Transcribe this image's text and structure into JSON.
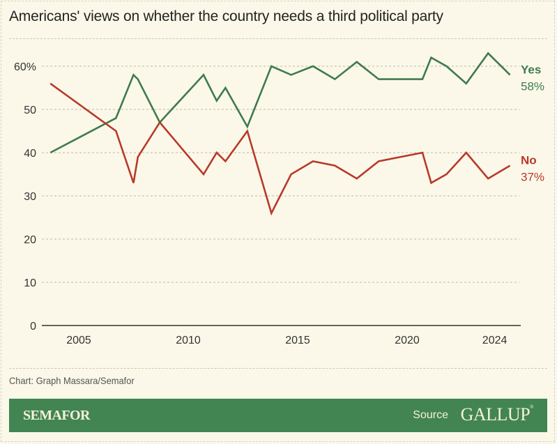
{
  "title": "Americans' views on whether the country needs a third political party",
  "credit": "Chart: Graph Massara/Semafor",
  "footer": {
    "brand": "SEMAFOR",
    "source_label": "Source",
    "source_name": "GALLUP"
  },
  "colors": {
    "background": "#fbf8e9",
    "yes": "#3f7a4e",
    "no": "#b8392a",
    "footer": "#428553"
  },
  "chart_data": {
    "type": "line",
    "title": "Americans' views on whether the country needs a third political party",
    "xlabel": "",
    "ylabel": "",
    "xlim": [
      2003.5,
      2024.9
    ],
    "ylim": [
      0,
      60
    ],
    "grid": true,
    "legend": "inline-right",
    "y_ticks": [
      {
        "value": 0,
        "label": "0"
      },
      {
        "value": 10,
        "label": "10"
      },
      {
        "value": 20,
        "label": "20"
      },
      {
        "value": 30,
        "label": "30"
      },
      {
        "value": 40,
        "label": "40"
      },
      {
        "value": 50,
        "label": "50"
      },
      {
        "value": 60,
        "label": "60%"
      }
    ],
    "x_ticks": [
      {
        "value": 2005,
        "label": "2005"
      },
      {
        "value": 2010,
        "label": "2010"
      },
      {
        "value": 2015,
        "label": "2015"
      },
      {
        "value": 2020,
        "label": "2020"
      },
      {
        "value": 2024,
        "label": "2024"
      }
    ],
    "x": [
      2003.7,
      2006.7,
      2007.5,
      2007.7,
      2008.7,
      2010.7,
      2011.3,
      2011.7,
      2012.7,
      2013.8,
      2014.7,
      2015.7,
      2016.7,
      2017.7,
      2018.7,
      2020.7,
      2021.1,
      2021.8,
      2022.7,
      2023.7,
      2024.7
    ],
    "series": [
      {
        "name": "Yes",
        "label_value": "58%",
        "color": "#3f7a4e",
        "values": [
          40,
          48,
          58,
          57,
          47,
          58,
          52,
          55,
          46,
          60,
          58,
          60,
          57,
          61,
          57,
          57,
          62,
          60,
          56,
          63,
          58
        ]
      },
      {
        "name": "No",
        "label_value": "37%",
        "color": "#b8392a",
        "values": [
          56,
          45,
          33,
          39,
          47,
          35,
          40,
          38,
          45,
          26,
          35,
          38,
          37,
          34,
          38,
          40,
          33,
          35,
          40,
          34,
          37
        ]
      }
    ]
  }
}
